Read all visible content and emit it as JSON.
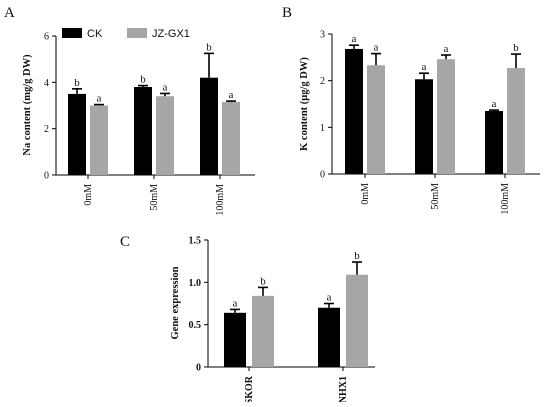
{
  "colors": {
    "ck": "#000000",
    "jz": "#a6a6a6",
    "axis": "#000000"
  },
  "legend": {
    "ck": "CK",
    "jz": "JZ-GX1"
  },
  "panels": {
    "a": "A",
    "b": "B",
    "c": "C"
  },
  "chart_data": [
    {
      "type": "bar",
      "panel": "A",
      "ylabel": "Na content (mg/g  DW)",
      "ylim": [
        0,
        6
      ],
      "yticks": [
        0,
        2,
        4,
        6
      ],
      "categories": [
        "0mM",
        "50mM",
        "100mM"
      ],
      "series": [
        {
          "name": "CK",
          "values": [
            3.5,
            3.8,
            4.2
          ],
          "errors": [
            0.22,
            0.06,
            1.05
          ],
          "labels": [
            "b",
            "b",
            "b"
          ]
        },
        {
          "name": "JZ-GX1",
          "values": [
            3.0,
            3.4,
            3.15
          ],
          "errors": [
            0.04,
            0.12,
            0.04
          ],
          "labels": [
            "a",
            "a",
            "a"
          ]
        }
      ]
    },
    {
      "type": "bar",
      "panel": "B",
      "ylabel": "K content (μg/g  DW)",
      "ylim": [
        0,
        3
      ],
      "yticks": [
        0,
        1,
        2,
        3
      ],
      "categories": [
        "0mM",
        "50mM",
        "100mM"
      ],
      "series": [
        {
          "name": "CK",
          "values": [
            2.68,
            2.03,
            1.35
          ],
          "errors": [
            0.08,
            0.13,
            0.02
          ],
          "labels": [
            "a",
            "a",
            "a"
          ]
        },
        {
          "name": "JZ-GX1",
          "values": [
            2.33,
            2.46,
            2.27
          ],
          "errors": [
            0.25,
            0.09,
            0.3
          ],
          "labels": [
            "a",
            "a",
            "b"
          ]
        }
      ]
    },
    {
      "type": "bar",
      "panel": "C",
      "ylabel": "Gene expression",
      "ylim": [
        0,
        1.5
      ],
      "yticks": [
        0,
        0.5,
        1.0,
        1.5
      ],
      "categories": [
        "SKOR",
        "NHX1"
      ],
      "series": [
        {
          "name": "CK",
          "values": [
            0.64,
            0.7
          ],
          "errors": [
            0.04,
            0.05
          ],
          "labels": [
            "a",
            "a"
          ]
        },
        {
          "name": "JZ-GX1",
          "values": [
            0.84,
            1.09
          ],
          "errors": [
            0.1,
            0.15
          ],
          "labels": [
            "b",
            "b"
          ]
        }
      ]
    }
  ]
}
